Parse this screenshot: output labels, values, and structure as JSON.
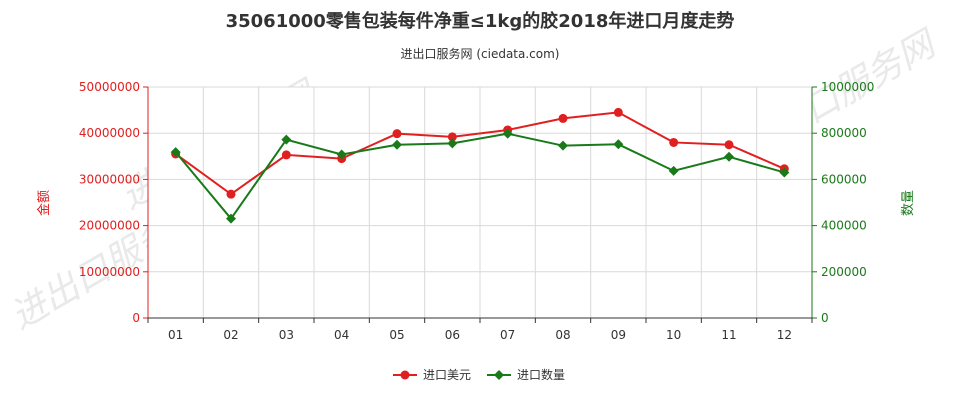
{
  "chart_data": {
    "type": "line",
    "title": "35061000零售包装每件净重≤1kg的胶2018年进口月度走势",
    "subtitle": "进出口服务网 (ciedata.com)",
    "watermark": "进出口服务网",
    "categories": [
      "01",
      "02",
      "03",
      "04",
      "05",
      "06",
      "07",
      "08",
      "09",
      "10",
      "11",
      "12"
    ],
    "y_left": {
      "label": "金额",
      "lim": [
        0,
        50000000
      ],
      "ticks": [
        0,
        10000000,
        20000000,
        30000000,
        40000000,
        50000000
      ],
      "tick_labels": [
        "0",
        "10000000",
        "20000000",
        "30000000",
        "40000000",
        "50000000"
      ],
      "color": "#e02020"
    },
    "y_right": {
      "label": "数量",
      "lim": [
        0,
        1000000
      ],
      "ticks": [
        0,
        200000,
        400000,
        600000,
        800000,
        1000000
      ],
      "tick_labels": [
        "0",
        "200000",
        "400000",
        "600000",
        "800000",
        "1000000"
      ],
      "color": "#1a7a1a"
    },
    "series": [
      {
        "name": "进口美元",
        "axis": "left",
        "color": "#e02020",
        "marker": "circle",
        "values": [
          35500000,
          26800000,
          35300000,
          34500000,
          39900000,
          39200000,
          40700000,
          43200000,
          44500000,
          38000000,
          37500000,
          32300000
        ]
      },
      {
        "name": "进口数量",
        "axis": "right",
        "color": "#1a7a1a",
        "marker": "diamond",
        "values": [
          718000,
          430000,
          772000,
          708000,
          750000,
          756000,
          798000,
          746000,
          752000,
          637000,
          698000,
          630000
        ]
      }
    ]
  }
}
